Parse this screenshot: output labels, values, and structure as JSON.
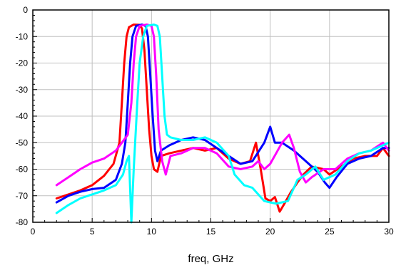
{
  "chart_data": {
    "type": "line",
    "title": "",
    "xlabel": "freq, GHz",
    "ylabel": "",
    "xlim": [
      0,
      30
    ],
    "ylim": [
      -80,
      0
    ],
    "x_ticks": [
      0,
      5,
      10,
      15,
      20,
      25,
      30
    ],
    "y_ticks": [
      0,
      -10,
      -20,
      -30,
      -40,
      -50,
      -60,
      -70,
      -80
    ],
    "x_tick_labels": [
      "0",
      "5",
      "10",
      "15",
      "20",
      "25",
      "30"
    ],
    "y_tick_labels": [
      "0",
      "-10",
      "-20",
      "-30",
      "-40",
      "-50",
      "-60",
      "-70",
      "-80"
    ],
    "grid": true,
    "legend": "none",
    "series": [
      {
        "color": "#ff0000",
        "points": [
          [
            2,
            -71
          ],
          [
            3,
            -69.5
          ],
          [
            4,
            -68
          ],
          [
            5,
            -66
          ],
          [
            6,
            -62.5
          ],
          [
            6.8,
            -58
          ],
          [
            7.3,
            -50
          ],
          [
            7.5,
            -35
          ],
          [
            7.7,
            -20
          ],
          [
            7.9,
            -10
          ],
          [
            8.1,
            -6.5
          ],
          [
            8.5,
            -5.5
          ],
          [
            9,
            -5.6
          ],
          [
            9.2,
            -7
          ],
          [
            9.4,
            -15
          ],
          [
            9.6,
            -30
          ],
          [
            9.8,
            -45
          ],
          [
            10,
            -55
          ],
          [
            10.2,
            -60
          ],
          [
            10.5,
            -61
          ],
          [
            10.8,
            -55
          ],
          [
            11.5,
            -54
          ],
          [
            12.5,
            -53
          ],
          [
            13.5,
            -52
          ],
          [
            14.5,
            -53
          ],
          [
            15.5,
            -52
          ],
          [
            16.5,
            -56
          ],
          [
            17.5,
            -58
          ],
          [
            18.3,
            -57
          ],
          [
            18.8,
            -50
          ],
          [
            19.2,
            -60
          ],
          [
            19.6,
            -71
          ],
          [
            20,
            -72
          ],
          [
            20.4,
            -70.5
          ],
          [
            20.8,
            -76
          ],
          [
            21.2,
            -73
          ],
          [
            21.7,
            -69
          ],
          [
            22.3,
            -65
          ],
          [
            22.8,
            -62
          ],
          [
            23.5,
            -59
          ],
          [
            24.5,
            -60
          ],
          [
            25,
            -62
          ],
          [
            26,
            -59
          ],
          [
            27,
            -56
          ],
          [
            28,
            -55
          ],
          [
            29,
            -55
          ],
          [
            29.5,
            -52
          ],
          [
            30,
            -55
          ]
        ]
      },
      {
        "color": "#0000ff",
        "points": [
          [
            2,
            -72.5
          ],
          [
            3,
            -70
          ],
          [
            4,
            -68.5
          ],
          [
            5,
            -67.5
          ],
          [
            6,
            -67
          ],
          [
            7,
            -64
          ],
          [
            7.5,
            -58
          ],
          [
            7.8,
            -50
          ],
          [
            8,
            -35
          ],
          [
            8.2,
            -20
          ],
          [
            8.4,
            -10
          ],
          [
            8.7,
            -6
          ],
          [
            9.2,
            -5.5
          ],
          [
            9.5,
            -6
          ],
          [
            9.7,
            -10
          ],
          [
            9.9,
            -25
          ],
          [
            10.1,
            -40
          ],
          [
            10.3,
            -53
          ],
          [
            10.5,
            -57
          ],
          [
            10.8,
            -53
          ],
          [
            11.5,
            -51
          ],
          [
            12.5,
            -49
          ],
          [
            13.5,
            -48
          ],
          [
            14.5,
            -49
          ],
          [
            15.5,
            -52
          ],
          [
            16.5,
            -55
          ],
          [
            17.5,
            -58
          ],
          [
            18.5,
            -57
          ],
          [
            19.5,
            -50
          ],
          [
            20,
            -44
          ],
          [
            20.4,
            -50
          ],
          [
            21,
            -50
          ],
          [
            22,
            -53
          ],
          [
            23,
            -57
          ],
          [
            24,
            -61
          ],
          [
            24.6,
            -65
          ],
          [
            25,
            -67
          ],
          [
            25.6,
            -63
          ],
          [
            26.5,
            -58
          ],
          [
            27.5,
            -56
          ],
          [
            28.5,
            -55
          ],
          [
            29.5,
            -52
          ],
          [
            30,
            -52
          ]
        ]
      },
      {
        "color": "#ff00ff",
        "points": [
          [
            2,
            -66
          ],
          [
            3,
            -63
          ],
          [
            4,
            -60
          ],
          [
            5,
            -57.5
          ],
          [
            6,
            -56
          ],
          [
            7,
            -53
          ],
          [
            7.5,
            -50
          ],
          [
            8,
            -47
          ],
          [
            8.3,
            -35
          ],
          [
            8.5,
            -20
          ],
          [
            8.7,
            -10
          ],
          [
            9,
            -6
          ],
          [
            9.6,
            -5.5
          ],
          [
            10,
            -6
          ],
          [
            10.2,
            -10
          ],
          [
            10.4,
            -25
          ],
          [
            10.6,
            -45
          ],
          [
            10.9,
            -57
          ],
          [
            11.2,
            -62
          ],
          [
            11.6,
            -55
          ],
          [
            12.5,
            -54
          ],
          [
            13.5,
            -52
          ],
          [
            14.5,
            -52
          ],
          [
            15.5,
            -54
          ],
          [
            16.5,
            -59
          ],
          [
            17.5,
            -60
          ],
          [
            18.5,
            -59
          ],
          [
            19,
            -57
          ],
          [
            19.5,
            -60
          ],
          [
            20,
            -58
          ],
          [
            20.5,
            -54
          ],
          [
            21,
            -50
          ],
          [
            21.6,
            -47
          ],
          [
            22,
            -52
          ],
          [
            22.5,
            -61
          ],
          [
            23,
            -65
          ],
          [
            23.5,
            -63
          ],
          [
            24.5,
            -60
          ],
          [
            25.5,
            -60
          ],
          [
            26.5,
            -56
          ],
          [
            27.5,
            -54
          ],
          [
            28.5,
            -53
          ],
          [
            29.5,
            -50
          ],
          [
            30,
            -53
          ]
        ]
      },
      {
        "color": "#00ffff",
        "points": [
          [
            2,
            -76.5
          ],
          [
            3,
            -73.5
          ],
          [
            4,
            -71
          ],
          [
            5,
            -69.5
          ],
          [
            6,
            -68
          ],
          [
            7,
            -66
          ],
          [
            7.6,
            -62
          ],
          [
            7.9,
            -57
          ],
          [
            8.1,
            -55
          ],
          [
            8.3,
            -80
          ],
          [
            8.5,
            -60
          ],
          [
            8.8,
            -35
          ],
          [
            9,
            -20
          ],
          [
            9.3,
            -10
          ],
          [
            9.6,
            -6
          ],
          [
            10.2,
            -5.5
          ],
          [
            10.5,
            -6
          ],
          [
            10.7,
            -10
          ],
          [
            10.9,
            -25
          ],
          [
            11.1,
            -40
          ],
          [
            11.3,
            -47
          ],
          [
            11.6,
            -48
          ],
          [
            12.5,
            -49
          ],
          [
            13.5,
            -49
          ],
          [
            14.5,
            -48
          ],
          [
            15.5,
            -50
          ],
          [
            16.5,
            -55
          ],
          [
            17,
            -62
          ],
          [
            17.8,
            -66
          ],
          [
            18.5,
            -67
          ],
          [
            19.5,
            -72
          ],
          [
            20.5,
            -73
          ],
          [
            21.5,
            -72
          ],
          [
            22.3,
            -64
          ],
          [
            23,
            -62
          ],
          [
            23.8,
            -59
          ],
          [
            24.5,
            -64
          ],
          [
            25.5,
            -62
          ],
          [
            26.5,
            -57
          ],
          [
            27.5,
            -54
          ],
          [
            28.5,
            -53
          ],
          [
            29.5,
            -51
          ],
          [
            30,
            -50
          ]
        ]
      }
    ]
  }
}
